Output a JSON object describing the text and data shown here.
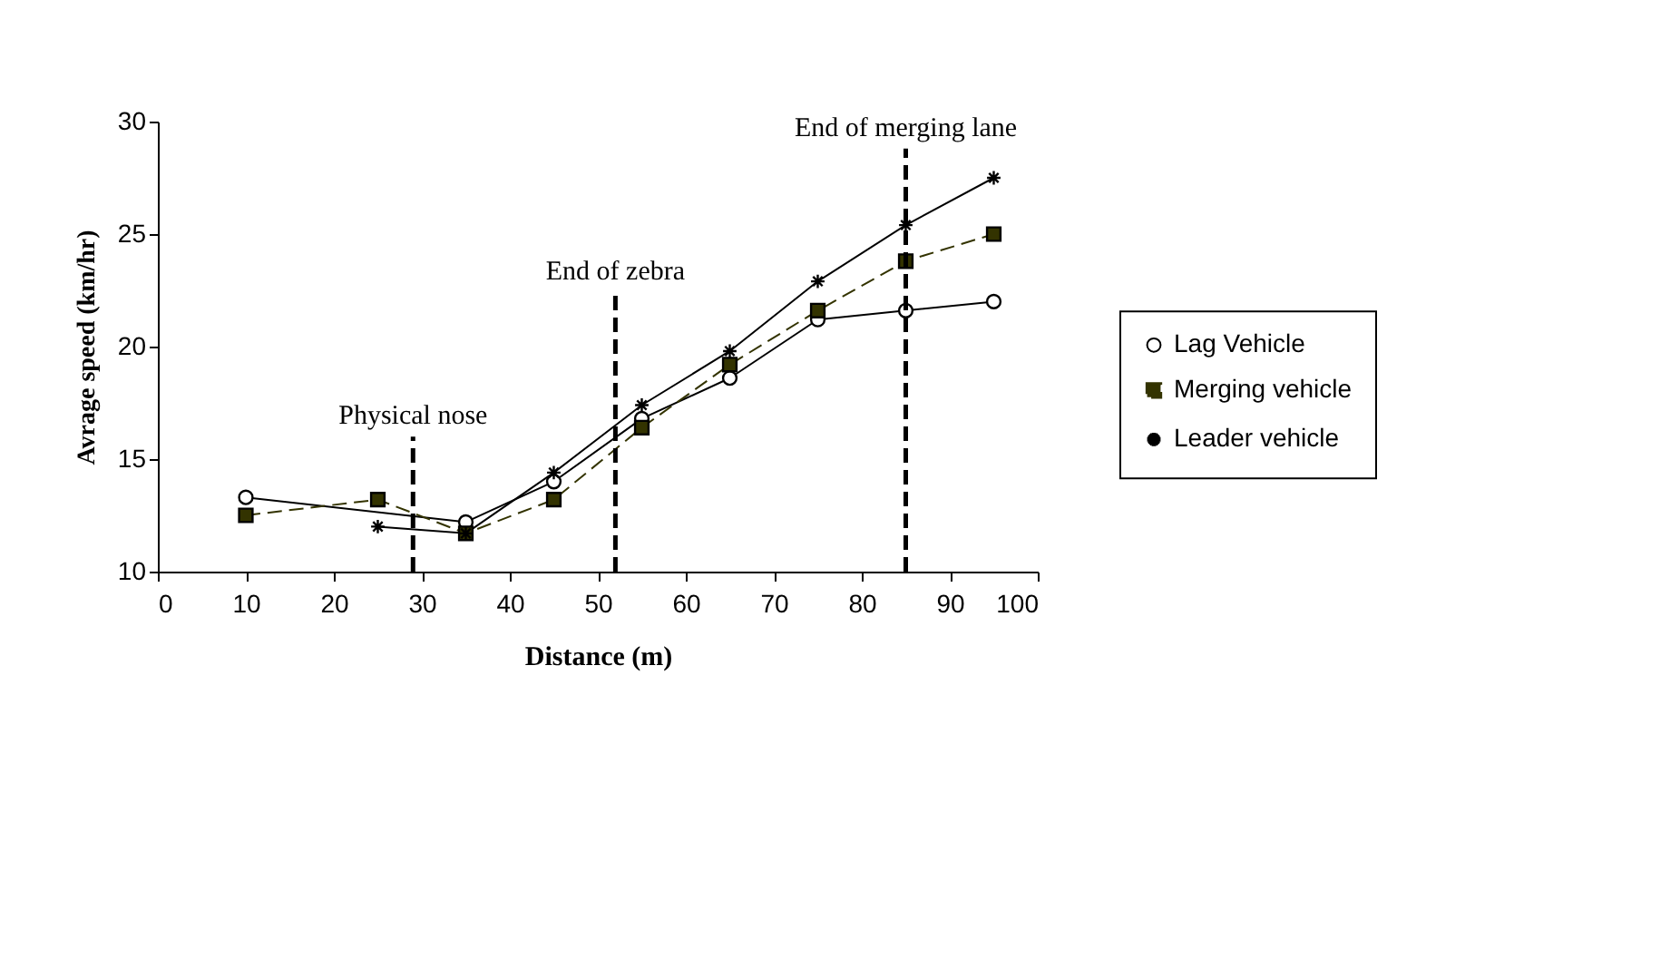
{
  "chart_data": {
    "type": "line",
    "xlabel": "Distance (m)",
    "ylabel": "Avrage speed (km/hr)",
    "xlim": [
      0,
      100
    ],
    "xticks": [
      0,
      10,
      20,
      30,
      40,
      50,
      60,
      70,
      80,
      90,
      100
    ],
    "ylim": [
      10,
      30
    ],
    "yticks": [
      10,
      15,
      20,
      25,
      30
    ],
    "grid": false,
    "legend": "right",
    "series": [
      {
        "name": "Lag Vehicle",
        "color": "#000000",
        "marker": "circle",
        "line_style": "solid",
        "x": [
          10,
          35,
          45,
          55,
          65,
          75,
          85,
          95
        ],
        "values": [
          13.3,
          12.2,
          14.0,
          16.8,
          18.6,
          21.2,
          21.6,
          22.0
        ]
      },
      {
        "name": "Merging vehicle",
        "color": "#333300",
        "marker": "square",
        "line_style": "dashed",
        "x": [
          10,
          25,
          35,
          45,
          55,
          65,
          75,
          85,
          95
        ],
        "values": [
          12.5,
          13.2,
          11.7,
          13.2,
          16.4,
          19.2,
          21.6,
          23.8,
          25.0
        ]
      },
      {
        "name": "Leader vehicle",
        "color": "#000000",
        "marker": "cross",
        "line_style": "solid",
        "x": [
          25,
          35,
          45,
          55,
          65,
          75,
          85,
          95
        ],
        "values": [
          12.0,
          11.7,
          14.4,
          17.4,
          19.8,
          22.9,
          25.4,
          27.5
        ]
      }
    ],
    "ref_lines": [
      {
        "axis": "x",
        "value": 29,
        "label": "Physical nose",
        "line_style": "dashed"
      },
      {
        "axis": "x",
        "value": 52,
        "label": "End of zebra",
        "line_style": "dashed"
      },
      {
        "axis": "x",
        "value": 85,
        "label": "End of merging lane",
        "line_style": "dashed"
      }
    ]
  }
}
